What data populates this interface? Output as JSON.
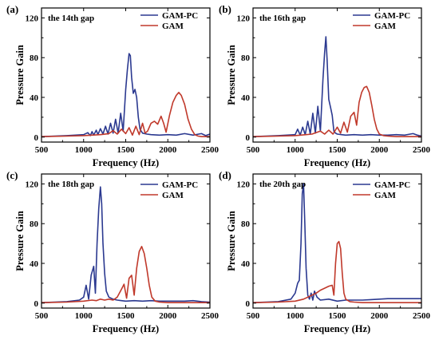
{
  "colors": {
    "gam_pc": "#2b3990",
    "gam": "#c0392b",
    "axis": "#000000"
  },
  "chart_data": [
    {
      "type": "line",
      "panel_label": "(a)",
      "annotation": "the 14th gap",
      "xlabel": "Frequency (Hz)",
      "ylabel": "Pressure Gain",
      "xlim": [
        500,
        2500
      ],
      "ylim": [
        -5,
        130
      ],
      "xticks": [
        500,
        1000,
        1500,
        2000,
        2500
      ],
      "yticks": [
        0,
        40,
        80,
        120
      ],
      "grid": false,
      "legend_position": "top-right",
      "series": [
        {
          "name": "GAM-PC",
          "color": "#2b3990",
          "x": [
            500,
            800,
            1000,
            1050,
            1080,
            1100,
            1120,
            1150,
            1170,
            1200,
            1230,
            1260,
            1290,
            1320,
            1350,
            1380,
            1410,
            1440,
            1470,
            1500,
            1520,
            1540,
            1555,
            1570,
            1590,
            1610,
            1630,
            1650,
            1670,
            1700,
            1750,
            1800,
            1900,
            2000,
            2100,
            2200,
            2300,
            2400,
            2450,
            2500
          ],
          "y": [
            0.5,
            1.5,
            2.5,
            4.5,
            1.5,
            5.5,
            2,
            7,
            2.5,
            8.5,
            3,
            11,
            3,
            14,
            4,
            18,
            4,
            24,
            6,
            48,
            68,
            84,
            82,
            60,
            44,
            48,
            40,
            20,
            8,
            4,
            3,
            2.5,
            2,
            2.5,
            2,
            3.5,
            2,
            3.5,
            1.5,
            3
          ]
        },
        {
          "name": "GAM",
          "color": "#c0392b",
          "x": [
            500,
            800,
            1000,
            1200,
            1300,
            1350,
            1400,
            1450,
            1500,
            1540,
            1580,
            1620,
            1660,
            1700,
            1730,
            1760,
            1800,
            1840,
            1880,
            1920,
            1950,
            1980,
            2020,
            2060,
            2100,
            2130,
            2160,
            2200,
            2240,
            2280,
            2320,
            2360,
            2400,
            2450,
            2500
          ],
          "y": [
            0.5,
            1,
            1.5,
            2.5,
            3.5,
            6.5,
            3,
            8,
            3.5,
            9.5,
            2,
            11,
            2.5,
            14,
            4,
            6,
            14,
            16,
            13,
            21,
            14,
            5,
            22,
            35,
            42,
            45,
            42,
            33,
            18,
            8,
            2.5,
            1,
            0.5,
            0.5,
            0.5
          ]
        }
      ]
    },
    {
      "type": "line",
      "panel_label": "(b)",
      "annotation": "the 16th gap",
      "xlabel": "Frequency (Hz)",
      "ylabel": "Pressure Gain",
      "xlim": [
        500,
        2500
      ],
      "ylim": [
        -5,
        130
      ],
      "xticks": [
        500,
        1000,
        1500,
        2000,
        2500
      ],
      "yticks": [
        0,
        40,
        80,
        120
      ],
      "grid": false,
      "legend_position": "top-right",
      "series": [
        {
          "name": "GAM-PC",
          "color": "#2b3990",
          "x": [
            500,
            800,
            1000,
            1030,
            1060,
            1090,
            1120,
            1150,
            1180,
            1210,
            1240,
            1270,
            1300,
            1330,
            1350,
            1365,
            1380,
            1400,
            1420,
            1440,
            1460,
            1480,
            1500,
            1550,
            1600,
            1700,
            1800,
            1900,
            2000,
            2100,
            2200,
            2300,
            2400,
            2450,
            2500
          ],
          "y": [
            0.5,
            1.5,
            2.5,
            8,
            2,
            10,
            2.5,
            16,
            3,
            24,
            4,
            31,
            6,
            58,
            85,
            101,
            78,
            38,
            30,
            22,
            6,
            4,
            3,
            2.5,
            2,
            2.5,
            2,
            2.5,
            2,
            2,
            2.5,
            2,
            3.5,
            2,
            1
          ]
        },
        {
          "name": "GAM",
          "color": "#c0392b",
          "x": [
            500,
            800,
            1000,
            1200,
            1300,
            1350,
            1400,
            1450,
            1500,
            1540,
            1580,
            1620,
            1660,
            1700,
            1730,
            1760,
            1790,
            1820,
            1850,
            1880,
            1910,
            1940,
            1970,
            2000,
            2050,
            2100,
            2200,
            2300,
            2400,
            2500
          ],
          "y": [
            0.5,
            1,
            1.5,
            3,
            6,
            3,
            7,
            3,
            10,
            4,
            15,
            5,
            21,
            25,
            12,
            35,
            45,
            50,
            51,
            45,
            32,
            18,
            8,
            3,
            1.5,
            1,
            0.5,
            0.5,
            0.5,
            0.5
          ]
        }
      ]
    },
    {
      "type": "line",
      "panel_label": "(c)",
      "annotation": "the 18th gap",
      "xlabel": "Frequency (Hz)",
      "ylabel": "Pressure Gain",
      "xlim": [
        500,
        2500
      ],
      "ylim": [
        -5,
        130
      ],
      "xticks": [
        500,
        1000,
        1500,
        2000,
        2500
      ],
      "yticks": [
        0,
        40,
        80,
        120
      ],
      "grid": false,
      "legend_position": "top-right",
      "series": [
        {
          "name": "GAM-PC",
          "color": "#2b3990",
          "x": [
            500,
            800,
            950,
            1000,
            1030,
            1060,
            1090,
            1120,
            1140,
            1160,
            1180,
            1200,
            1215,
            1230,
            1250,
            1270,
            1300,
            1350,
            1400,
            1450,
            1500,
            1600,
            1700,
            1800,
            1900,
            2000,
            2100,
            2200,
            2300,
            2400,
            2500
          ],
          "y": [
            0.5,
            1.5,
            3,
            6,
            18,
            4,
            28,
            37,
            10,
            60,
            95,
            117,
            100,
            60,
            30,
            12,
            6,
            4,
            3,
            2.5,
            2,
            2.5,
            2,
            2.5,
            2,
            2,
            2,
            2,
            2.5,
            1.5,
            1
          ]
        },
        {
          "name": "GAM",
          "color": "#c0392b",
          "x": [
            500,
            800,
            1000,
            1100,
            1150,
            1200,
            1250,
            1300,
            1350,
            1400,
            1450,
            1480,
            1510,
            1540,
            1570,
            1600,
            1630,
            1660,
            1690,
            1720,
            1750,
            1780,
            1810,
            1850,
            1900,
            2000,
            2100,
            2200,
            2300,
            2400,
            2500
          ],
          "y": [
            0.5,
            1,
            2,
            3,
            2.5,
            4,
            3,
            4,
            3,
            6,
            14,
            19,
            5,
            25,
            28,
            8,
            35,
            52,
            57,
            50,
            35,
            18,
            6,
            2,
            1,
            0.5,
            0.5,
            0.5,
            0.5,
            0.5,
            0.5
          ]
        }
      ]
    },
    {
      "type": "line",
      "panel_label": "(d)",
      "annotation": "the 20th gap",
      "xlabel": "Frequency (Hz)",
      "ylabel": "Pressure Gain",
      "xlim": [
        500,
        2500
      ],
      "ylim": [
        -5,
        130
      ],
      "xticks": [
        500,
        1000,
        1500,
        2000,
        2500
      ],
      "yticks": [
        0,
        40,
        80,
        120
      ],
      "grid": false,
      "legend_position": "top-right",
      "series": [
        {
          "name": "GAM-PC",
          "color": "#2b3990",
          "x": [
            500,
            800,
            950,
            1000,
            1030,
            1050,
            1070,
            1085,
            1100,
            1115,
            1130,
            1150,
            1170,
            1190,
            1210,
            1230,
            1260,
            1300,
            1400,
            1500,
            1600,
            1700,
            1800,
            1900,
            2000,
            2100,
            2200,
            2300,
            2400,
            2500
          ],
          "y": [
            0.5,
            1.5,
            4,
            10,
            20,
            23,
            60,
            110,
            120,
            80,
            35,
            8,
            4,
            10,
            3,
            12,
            6,
            3,
            4,
            2,
            3,
            3,
            3,
            3.5,
            4,
            4.5,
            4.5,
            4.5,
            4.5,
            4.5
          ]
        },
        {
          "name": "GAM",
          "color": "#c0392b",
          "x": [
            500,
            800,
            1000,
            1100,
            1200,
            1250,
            1300,
            1350,
            1400,
            1440,
            1460,
            1480,
            1500,
            1520,
            1540,
            1560,
            1580,
            1600,
            1650,
            1700,
            1800,
            1900,
            2000,
            2100,
            2200,
            2300,
            2400,
            2500
          ],
          "y": [
            0.5,
            1,
            2,
            4,
            8,
            10,
            13,
            15,
            17,
            18,
            8,
            40,
            60,
            62,
            55,
            30,
            10,
            4,
            1.5,
            1,
            0.5,
            0.5,
            0.5,
            0.5,
            0.5,
            0.5,
            0.5,
            0.5
          ]
        }
      ]
    }
  ]
}
